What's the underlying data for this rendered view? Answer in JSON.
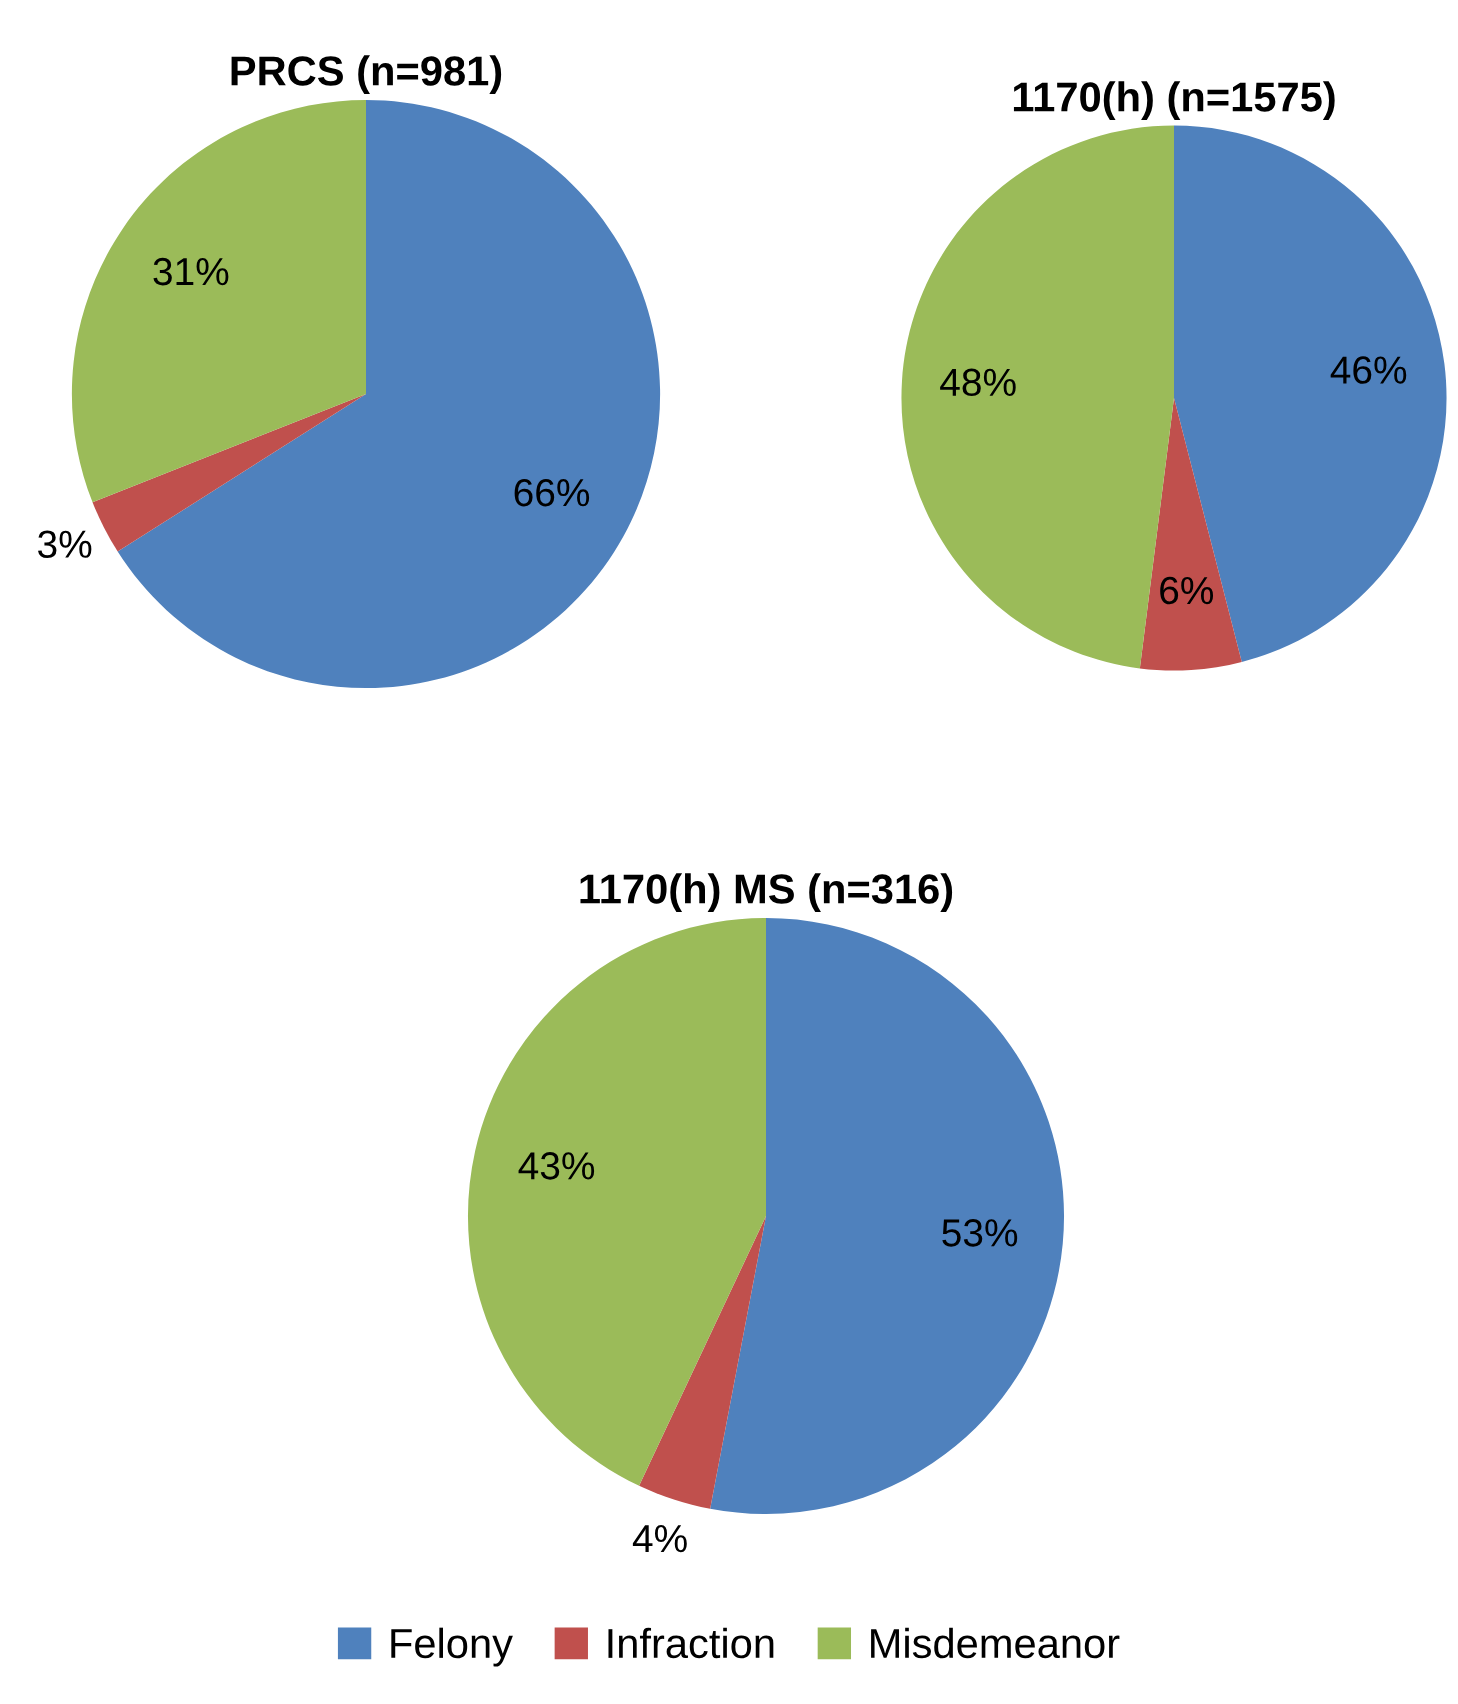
{
  "chart_data": [
    {
      "type": "pie",
      "title": "PRCS (n=981)",
      "categories": [
        "Felony",
        "Infraction",
        "Misdemeanor"
      ],
      "values": [
        66,
        3,
        31
      ],
      "value_labels": [
        "66%",
        "3%",
        "31%"
      ],
      "colors": [
        "#4f81bd",
        "#c0504d",
        "#9bbb59"
      ],
      "legend": "bottom"
    },
    {
      "type": "pie",
      "title": "1170(h) (n=1575)",
      "categories": [
        null,
        null,
        null
      ],
      "values": [
        46,
        6,
        48
      ],
      "value_labels": [
        "46%",
        "6%",
        "48%"
      ],
      "colors": [
        "#4f81bd",
        "#c0504d",
        "#9bbb59"
      ]
    },
    {
      "type": "pie",
      "title": "1170(h) MS (n=316)",
      "categories": [
        null,
        null,
        null
      ],
      "values": [
        53,
        4,
        43
      ],
      "value_labels": [
        "53%",
        "4%",
        "43%"
      ],
      "colors": [
        "#4f81bd",
        "#c0504d",
        "#9bbb59"
      ]
    }
  ]
}
